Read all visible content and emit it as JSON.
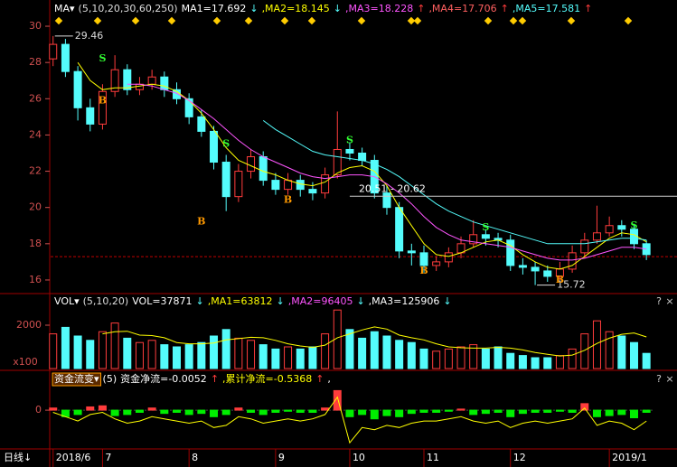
{
  "chart_data": [
    {
      "type": "candlestick",
      "header": [
        {
          "text": "MA▾",
          "color": "#ffffff"
        },
        {
          "text": "(5,10,20,30,60,250)",
          "color": "#dddddd"
        },
        {
          "text": "MA1=17.692",
          "color": "#ffffff"
        },
        {
          "text": "↓",
          "color": "#54fcfc"
        },
        {
          "text": ",MA2=18.145",
          "color": "#ffff00"
        },
        {
          "text": "↓",
          "color": "#54fcfc"
        },
        {
          "text": ",MA3=18.228",
          "color": "#ff55ff"
        },
        {
          "text": "↑",
          "color": "#ff3c3c"
        },
        {
          "text": ",MA4=17.706",
          "color": "#ff6060"
        },
        {
          "text": "↑",
          "color": "#ff3c3c"
        },
        {
          "text": ",MA5=17.581",
          "color": "#54fcfc"
        },
        {
          "text": "↑",
          "color": "#ff3c3c"
        }
      ],
      "up_color": "#ff3c3c",
      "down_color": "#54fcfc",
      "open": [
        28.2,
        29.0,
        27.5,
        25.5,
        24.6,
        26.4,
        27.6,
        26.5,
        26.8,
        27.2,
        26.5,
        26.0,
        25.0,
        24.2,
        22.5,
        20.6,
        22.0,
        22.8,
        21.5,
        21.0,
        21.5,
        21.0,
        20.8,
        21.8,
        23.2,
        23.0,
        22.6,
        20.8,
        20.0,
        17.6,
        17.5,
        16.8,
        17.0,
        17.5,
        18.0,
        18.5,
        18.3,
        18.2,
        16.8,
        16.7,
        16.5,
        16.2,
        16.6,
        17.5,
        18.2,
        18.6,
        19.0,
        18.8,
        18.0
      ],
      "high": [
        29.46,
        29.3,
        27.8,
        26.0,
        26.8,
        28.4,
        27.9,
        27.2,
        27.6,
        27.5,
        26.9,
        26.3,
        25.4,
        24.5,
        22.9,
        22.4,
        23.2,
        23.1,
        21.9,
        21.9,
        21.8,
        21.4,
        22.2,
        25.3,
        23.6,
        23.3,
        22.9,
        21.2,
        20.3,
        18.0,
        17.9,
        17.3,
        17.8,
        18.4,
        19.3,
        18.8,
        18.6,
        18.5,
        17.2,
        17.0,
        16.8,
        17.0,
        17.9,
        18.6,
        20.1,
        19.5,
        19.3,
        19.1,
        18.2
      ],
      "low": [
        27.8,
        27.2,
        24.8,
        24.2,
        24.3,
        26.1,
        26.2,
        26.2,
        26.5,
        26.1,
        25.7,
        24.6,
        23.9,
        22.1,
        19.8,
        20.3,
        21.6,
        21.2,
        20.7,
        20.7,
        20.6,
        20.4,
        20.5,
        21.6,
        22.6,
        22.3,
        20.5,
        19.6,
        17.2,
        16.8,
        16.4,
        16.5,
        16.7,
        17.2,
        17.8,
        17.9,
        17.8,
        16.5,
        16.3,
        15.72,
        15.9,
        16.0,
        16.4,
        17.2,
        18.0,
        18.4,
        18.4,
        17.7,
        17.1
      ],
      "close": [
        29.0,
        27.5,
        25.5,
        24.6,
        26.4,
        27.6,
        26.5,
        26.8,
        27.2,
        26.5,
        26.0,
        25.0,
        24.2,
        22.5,
        20.6,
        22.0,
        22.8,
        21.5,
        21.0,
        21.5,
        21.0,
        20.8,
        21.8,
        23.2,
        23.0,
        22.6,
        20.8,
        20.0,
        17.6,
        17.5,
        16.8,
        17.0,
        17.5,
        18.0,
        18.5,
        18.3,
        18.2,
        16.8,
        16.7,
        16.5,
        16.2,
        16.6,
        17.5,
        18.2,
        18.6,
        19.0,
        18.8,
        18.0,
        17.4
      ],
      "series": [
        {
          "color": "#ffff00",
          "values": [
            null,
            null,
            28.0,
            27.0,
            26.5,
            26.6,
            26.6,
            26.7,
            26.8,
            26.7,
            26.4,
            25.9,
            25.2,
            24.3,
            23.3,
            22.6,
            22.3,
            22.0,
            21.8,
            21.5,
            21.3,
            21.2,
            21.4,
            21.9,
            22.2,
            22.3,
            22.0,
            21.2,
            20.0,
            19.0,
            18.0,
            17.4,
            17.3,
            17.5,
            17.8,
            18.1,
            18.2,
            17.9,
            17.4,
            17.0,
            16.7,
            16.6,
            16.8,
            17.3,
            17.8,
            18.3,
            18.6,
            18.5,
            18.1
          ]
        },
        {
          "color": "#ff55ff",
          "values": [
            null,
            null,
            null,
            null,
            null,
            null,
            26.8,
            26.8,
            26.7,
            26.5,
            26.3,
            25.9,
            25.4,
            24.9,
            24.3,
            23.7,
            23.2,
            22.8,
            22.5,
            22.2,
            21.9,
            21.7,
            21.6,
            21.7,
            21.8,
            21.8,
            21.7,
            21.3,
            20.8,
            20.2,
            19.5,
            18.9,
            18.5,
            18.2,
            18.1,
            18.0,
            17.9,
            17.8,
            17.6,
            17.4,
            17.2,
            17.1,
            17.1,
            17.2,
            17.4,
            17.6,
            17.8,
            17.8,
            17.7
          ]
        },
        {
          "color": "#54fcfc",
          "values": [
            null,
            null,
            null,
            null,
            null,
            null,
            null,
            null,
            null,
            null,
            null,
            null,
            null,
            null,
            null,
            null,
            null,
            24.8,
            24.3,
            23.9,
            23.5,
            23.1,
            22.9,
            22.8,
            22.7,
            22.6,
            22.4,
            22.1,
            21.7,
            21.2,
            20.7,
            20.2,
            19.8,
            19.5,
            19.2,
            19.0,
            18.8,
            18.6,
            18.4,
            18.2,
            18.0,
            18.0,
            18.0,
            18.0,
            18.1,
            18.2,
            18.3,
            18.3,
            18.2
          ]
        }
      ],
      "ylim": [
        15.4,
        30.45
      ],
      "yticks": [
        16,
        18,
        20,
        22,
        24,
        26,
        28,
        30
      ],
      "annotations": [
        {
          "text": "29.46",
          "index": 0,
          "value": 29.46
        },
        {
          "text": "15.72",
          "index": 39,
          "value": 15.72
        }
      ],
      "level_label": {
        "text": "20.51 - 20.62",
        "value": 20.62,
        "index": 24
      },
      "ref_line": {
        "value": 17.29,
        "color": "#c00000"
      },
      "signals": [
        {
          "text": "S",
          "index": 4,
          "value": 28.2
        },
        {
          "text": "B",
          "index": 4,
          "value": 25.9
        },
        {
          "text": "S",
          "index": 14,
          "value": 23.5
        },
        {
          "text": "B",
          "index": 12,
          "value": 19.2
        },
        {
          "text": "S",
          "index": 24,
          "value": 23.7
        },
        {
          "text": "B",
          "index": 19,
          "value": 20.4
        },
        {
          "text": "S",
          "index": 35,
          "value": 18.9
        },
        {
          "text": "B",
          "index": 30,
          "value": 16.5
        },
        {
          "text": "S",
          "index": 47,
          "value": 19.0
        },
        {
          "text": "B",
          "index": 41,
          "value": 16.0
        }
      ]
    },
    {
      "type": "bar",
      "header": [
        {
          "text": "VOL▾",
          "color": "#ffffff"
        },
        {
          "text": "(5,10,20)",
          "color": "#dddddd"
        },
        {
          "text": "VOL=37871",
          "color": "#ffffff"
        },
        {
          "text": "↓",
          "color": "#54fcfc"
        },
        {
          "text": ",MA1=63812",
          "color": "#ffff00"
        },
        {
          "text": "↓",
          "color": "#54fcfc"
        },
        {
          "text": ",MA2=96405",
          "color": "#ff55ff"
        },
        {
          "text": "↓",
          "color": "#54fcfc"
        },
        {
          "text": ",MA3=125906",
          "color": "#ffffff"
        },
        {
          "text": "↓",
          "color": "#54fcfc"
        }
      ],
      "buttons": [
        "?",
        "×"
      ],
      "values": [
        1600,
        1900,
        1500,
        1300,
        1700,
        2100,
        1400,
        1200,
        1300,
        1100,
        1000,
        1100,
        1200,
        1500,
        1800,
        1400,
        1300,
        1100,
        900,
        1000,
        900,
        1000,
        1600,
        2700,
        1800,
        1400,
        1700,
        1500,
        1300,
        1200,
        900,
        800,
        900,
        1000,
        1100,
        900,
        1000,
        700,
        600,
        500,
        500,
        600,
        900,
        1600,
        2200,
        1700,
        1500,
        1200,
        700
      ],
      "series": [
        {
          "color": "#ffff00",
          "values": [
            null,
            null,
            null,
            null,
            1600,
            1700,
            1720,
            1540,
            1520,
            1420,
            1200,
            1140,
            1140,
            1180,
            1320,
            1380,
            1440,
            1420,
            1300,
            1140,
            1040,
            980,
            1080,
            1420,
            1600,
            1780,
            1920,
            1820,
            1540,
            1420,
            1320,
            1140,
            1000,
            960,
            940,
            940,
            980,
            940,
            860,
            740,
            660,
            580,
            620,
            840,
            1160,
            1400,
            1580,
            1640,
            1460
          ]
        }
      ],
      "ylim": [
        0,
        2750
      ],
      "yticks": [
        2000
      ],
      "unit": "x100"
    },
    {
      "type": "bar",
      "header": [
        {
          "text": "资金流变▾",
          "color": "#ffffff",
          "boxed": true
        },
        {
          "text": "(5)",
          "color": "#ffffff"
        },
        {
          "text": "资金净流=-0.0052",
          "color": "#ffffff"
        },
        {
          "text": "↑",
          "color": "#ff3c3c"
        },
        {
          "text": ",累计净流=-0.5368",
          "color": "#ffff00"
        },
        {
          "text": "↑",
          "color": "#ff3c3c"
        },
        {
          "text": ",",
          "color": "#ffffff"
        }
      ],
      "buttons": [
        "?",
        "×"
      ],
      "values": [
        0.1,
        -0.3,
        -0.2,
        0.15,
        0.2,
        -0.25,
        -0.2,
        -0.1,
        0.1,
        -0.15,
        -0.1,
        -0.2,
        -0.15,
        -0.3,
        -0.2,
        0.1,
        -0.1,
        -0.2,
        -0.1,
        -0.05,
        -0.1,
        -0.1,
        0.1,
        0.9,
        -0.3,
        -0.2,
        -0.4,
        -0.25,
        -0.3,
        -0.15,
        -0.1,
        -0.1,
        -0.05,
        0.05,
        -0.2,
        -0.15,
        -0.1,
        -0.3,
        -0.15,
        -0.1,
        -0.1,
        -0.05,
        -0.1,
        0.3,
        -0.3,
        -0.25,
        -0.2,
        -0.35,
        -0.1
      ],
      "pos_color": "#ff3c3c",
      "neg_color": "#00ee00",
      "series": [
        {
          "color": "#ffff00",
          "values": [
            -0.1,
            -0.3,
            -0.5,
            -0.2,
            -0.1,
            -0.4,
            -0.6,
            -0.5,
            -0.3,
            -0.4,
            -0.5,
            -0.6,
            -0.5,
            -0.8,
            -0.7,
            -0.3,
            -0.4,
            -0.6,
            -0.5,
            -0.4,
            -0.5,
            -0.4,
            -0.2,
            0.6,
            -1.5,
            -0.8,
            -0.9,
            -0.7,
            -0.8,
            -0.6,
            -0.5,
            -0.5,
            -0.4,
            -0.3,
            -0.5,
            -0.6,
            -0.5,
            -0.8,
            -0.6,
            -0.5,
            -0.6,
            -0.5,
            -0.4,
            0.1,
            -0.7,
            -0.5,
            -0.6,
            -0.9,
            -0.5
          ]
        }
      ],
      "ylim": [
        -1.7,
        1
      ],
      "yticks": [
        0
      ],
      "period_label": "日线↓",
      "xlim": [
        -0.2,
        48.5
      ],
      "xticks": [
        {
          "value": 0,
          "label": "2018/6"
        },
        {
          "value": 4,
          "label": "7"
        },
        {
          "value": 11,
          "label": "8"
        },
        {
          "value": 18,
          "label": "9"
        },
        {
          "value": 24,
          "label": "10"
        },
        {
          "value": 30,
          "label": "11"
        },
        {
          "value": 37,
          "label": "12"
        },
        {
          "value": 45,
          "label": "2019/1"
        }
      ]
    }
  ]
}
